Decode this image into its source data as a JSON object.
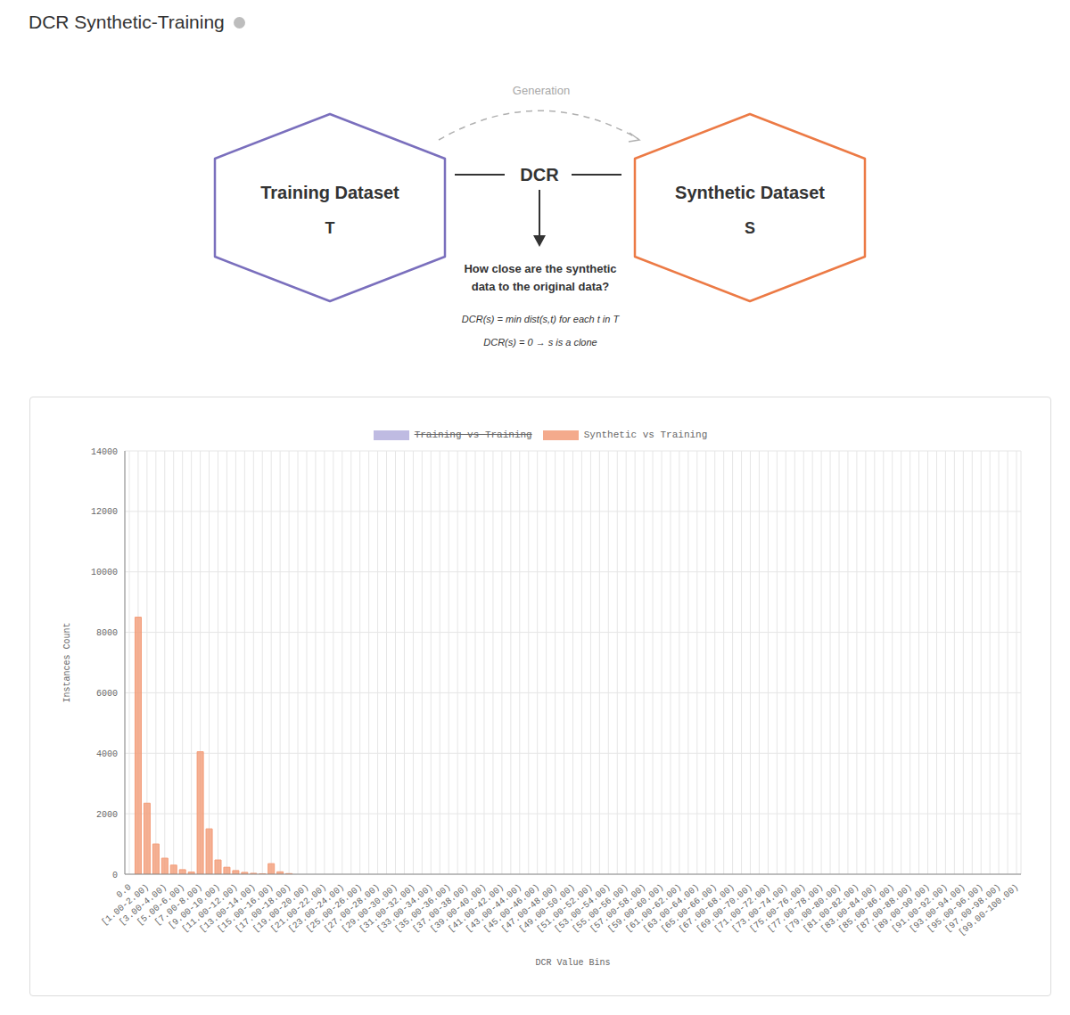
{
  "header": {
    "title": "DCR Synthetic-Training"
  },
  "diagram": {
    "generation_label": "Generation",
    "link_label": "DCR",
    "nodes": [
      {
        "label": "Training Dataset",
        "symbol": "T"
      },
      {
        "label": "Synthetic Dataset",
        "symbol": "S"
      }
    ],
    "question": [
      "How close are the synthetic",
      "data to the original data?"
    ],
    "formulas": [
      "DCR(s) = min dist(s,t) for each t in T",
      "DCR(s) = 0 → s is a clone"
    ]
  },
  "chart_data": {
    "type": "bar",
    "x_label": "DCR Value Bins",
    "y_label": "Instances Count",
    "categories": [
      "0.0",
      null,
      "[1.00-2.00)",
      null,
      "[3.00-4.00)",
      null,
      "[5.00-6.00)",
      null,
      "[7.00-8.00)",
      null,
      "[9.00-10.00)",
      null,
      "[11.00-12.00)",
      null,
      "[13.00-14.00)",
      null,
      "[15.00-16.00)",
      null,
      "[17.00-18.00)",
      null,
      "[19.00-20.00)",
      null,
      "[21.00-22.00)",
      null,
      "[23.00-24.00)",
      null,
      "[25.00-26.00)",
      null,
      "[27.00-28.00)",
      null,
      "[29.00-30.00)",
      null,
      "[31.00-32.00)",
      null,
      "[33.00-34.00)",
      null,
      "[35.00-36.00)",
      null,
      "[37.00-38.00)",
      null,
      "[39.00-40.00)",
      null,
      "[41.00-42.00)",
      null,
      "[43.00-44.00)",
      null,
      "[45.00-46.00)",
      null,
      "[47.00-48.00)",
      null,
      "[49.00-50.00)",
      null,
      "[51.00-52.00)",
      null,
      "[53.00-54.00)",
      null,
      "[55.00-56.00)",
      null,
      "[57.00-58.00)",
      null,
      "[59.00-60.00)",
      null,
      "[61.00-62.00)",
      null,
      "[63.00-64.00)",
      null,
      "[65.00-66.00)",
      null,
      "[67.00-68.00)",
      null,
      "[69.00-70.00)",
      null,
      "[71.00-72.00)",
      null,
      "[73.00-74.00)",
      null,
      "[75.00-76.00)",
      null,
      "[77.00-78.00)",
      null,
      "[79.00-80.00)",
      null,
      "[81.00-82.00)",
      null,
      "[83.00-84.00)",
      null,
      "[85.00-86.00)",
      null,
      "[87.00-88.00)",
      null,
      "[89.00-90.00)",
      null,
      "[91.00-92.00)",
      null,
      "[93.00-94.00)",
      null,
      "[95.00-96.00)",
      null,
      "[97.00-98.00)",
      null,
      "[99.00-100.00)"
    ],
    "series": [
      {
        "name": "Training vs Training",
        "color": "#b4b0de",
        "values": [
          null,
          null,
          null,
          null,
          null,
          null,
          null,
          null,
          null,
          null,
          null,
          null,
          null,
          null,
          null,
          null,
          null,
          null,
          null,
          null,
          null,
          null,
          null,
          null,
          null,
          null,
          null,
          null,
          null,
          null,
          null,
          null,
          null,
          null,
          null,
          null,
          null,
          null,
          null,
          null,
          null,
          null,
          null,
          null,
          null,
          null,
          null,
          null,
          null,
          null,
          null,
          null,
          null,
          null,
          null,
          null,
          null,
          null,
          null,
          null,
          null,
          null,
          null,
          null,
          null,
          null,
          null,
          null,
          null,
          null,
          null,
          null,
          null,
          null,
          null,
          null,
          null,
          null,
          null,
          null,
          null,
          null,
          null,
          null,
          null,
          null,
          null,
          null,
          null,
          null,
          null,
          null,
          null,
          null,
          null,
          null,
          null,
          null,
          null,
          null,
          null
        ]
      },
      {
        "name": "Synthetic vs Training",
        "color": "#f39c78",
        "values": [
          0,
          8500,
          2350,
          1000,
          530,
          300,
          150,
          70,
          4050,
          1500,
          470,
          230,
          120,
          60,
          30,
          15,
          350,
          80,
          20,
          0,
          0,
          0,
          0,
          0,
          0,
          0,
          0,
          0,
          0,
          0,
          0,
          0,
          0,
          0,
          0,
          0,
          0,
          0,
          0,
          0,
          0,
          0,
          0,
          0,
          0,
          0,
          0,
          0,
          0,
          0,
          0,
          0,
          0,
          0,
          0,
          0,
          0,
          0,
          0,
          0,
          0,
          0,
          0,
          0,
          0,
          0,
          0,
          0,
          0,
          0,
          0,
          0,
          0,
          0,
          0,
          0,
          0,
          0,
          0,
          0,
          0,
          0,
          0,
          0,
          0,
          0,
          0,
          0,
          0,
          0,
          0,
          0,
          0,
          0,
          0,
          0,
          0,
          0,
          0,
          0,
          0
        ]
      }
    ],
    "ylim": [
      0,
      14000
    ],
    "yticks": [
      0,
      2000,
      4000,
      6000,
      8000,
      10000,
      12000,
      14000
    ],
    "grid": true,
    "legend": "top"
  }
}
